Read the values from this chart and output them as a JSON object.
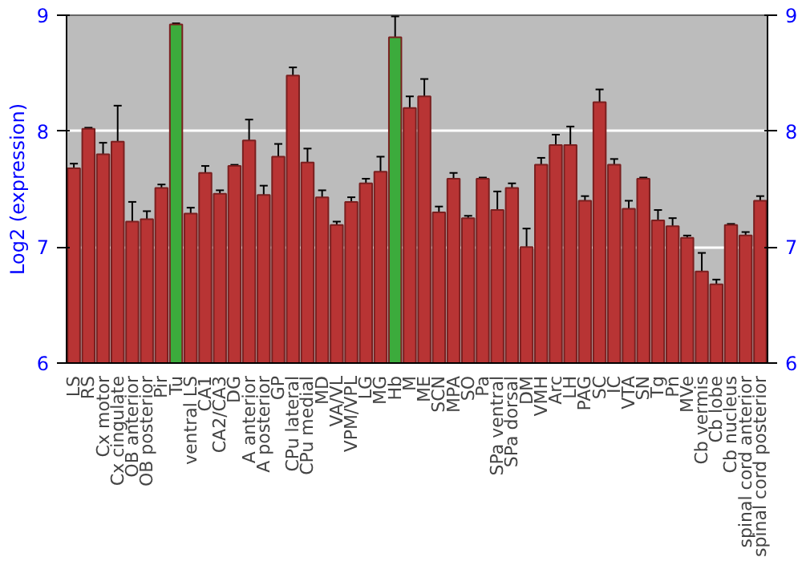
{
  "chart_data": {
    "type": "bar",
    "ylabel": "Log2 (expression)",
    "categories": [
      "LS",
      "RS",
      "Cx motor",
      "Cx cingulate",
      "OB anterior",
      "OB posterior",
      "Pir",
      "Tu",
      "ventral LS",
      "CA1",
      "CA2/CA3",
      "DG",
      "A anterior",
      "A posterior",
      "GP",
      "CPu lateral",
      "CPu medial",
      "MD",
      "VA/VL",
      "VPM/VPL",
      "LG",
      "MG",
      "Hb",
      "M",
      "ME",
      "SCN",
      "MPA",
      "SO",
      "Pa",
      "SPa ventral",
      "SPa dorsal",
      "DM",
      "VMH",
      "Arc",
      "LH",
      "PAG",
      "SC",
      "IC",
      "VTA",
      "SN",
      "Tg",
      "Pn",
      "MVe",
      "Cb vermis",
      "Cb lobe",
      "Cb nucleus",
      "spinal cord anterior",
      "spinal cord posterior"
    ],
    "values": [
      7.68,
      8.02,
      7.8,
      7.91,
      7.22,
      7.24,
      7.51,
      8.92,
      7.29,
      7.64,
      7.46,
      7.7,
      7.92,
      7.45,
      7.78,
      8.48,
      7.73,
      7.43,
      7.19,
      7.39,
      7.55,
      7.65,
      8.81,
      8.2,
      8.3,
      7.3,
      7.59,
      7.25,
      7.59,
      7.32,
      7.51,
      7.0,
      7.71,
      7.88,
      7.88,
      7.4,
      8.25,
      7.71,
      7.33,
      7.59,
      7.23,
      7.18,
      7.08,
      6.79,
      6.68,
      7.19,
      7.1,
      7.4
    ],
    "errors": [
      0.04,
      0.01,
      0.1,
      0.31,
      0.17,
      0.07,
      0.03,
      0.01,
      0.05,
      0.06,
      0.03,
      0.01,
      0.18,
      0.08,
      0.11,
      0.07,
      0.12,
      0.06,
      0.03,
      0.04,
      0.04,
      0.13,
      0.18,
      0.1,
      0.15,
      0.05,
      0.05,
      0.02,
      0.01,
      0.16,
      0.04,
      0.16,
      0.06,
      0.09,
      0.16,
      0.04,
      0.11,
      0.05,
      0.07,
      0.01,
      0.09,
      0.07,
      0.02,
      0.16,
      0.04,
      0.01,
      0.03,
      0.04
    ],
    "colors": [
      "#b83434",
      "#b83434",
      "#b83434",
      "#b83434",
      "#b83434",
      "#b83434",
      "#b83434",
      "#3cab3c",
      "#b83434",
      "#b83434",
      "#b83434",
      "#b83434",
      "#b83434",
      "#b83434",
      "#b83434",
      "#b83434",
      "#b83434",
      "#b83434",
      "#b83434",
      "#b83434",
      "#b83434",
      "#b83434",
      "#3cab3c",
      "#b83434",
      "#b83434",
      "#b83434",
      "#b83434",
      "#b83434",
      "#b83434",
      "#b83434",
      "#b83434",
      "#b83434",
      "#b83434",
      "#b83434",
      "#b83434",
      "#b83434",
      "#b83434",
      "#b83434",
      "#b83434",
      "#b83434",
      "#b83434",
      "#b83434",
      "#b83434",
      "#b83434",
      "#b83434",
      "#b83434",
      "#b83434",
      "#b83434"
    ],
    "ylim": [
      6,
      9
    ],
    "yticks": [
      6,
      7,
      8,
      9
    ],
    "y2lim": [
      6,
      9
    ],
    "y2ticks": [
      6,
      7,
      8,
      9
    ],
    "grid": "y"
  }
}
